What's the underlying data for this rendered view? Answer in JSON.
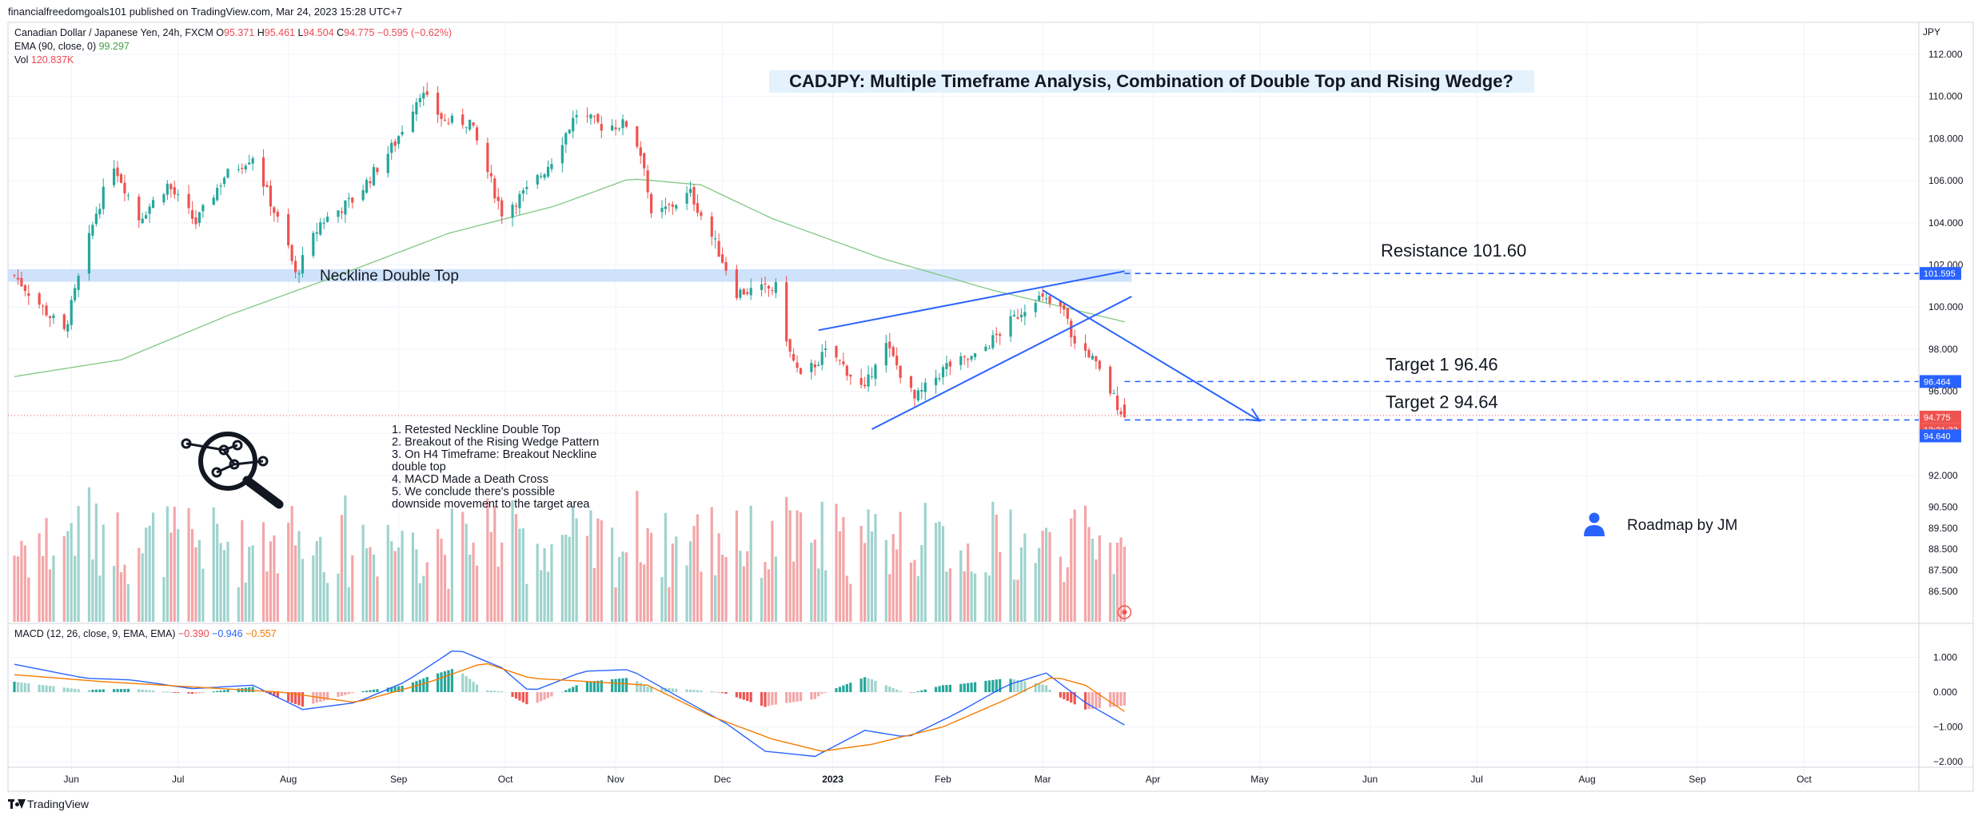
{
  "header": {
    "publisher": "financialfreedomgoals101 published on TradingView.com, Mar 24, 2023 15:28 UTC+7"
  },
  "legend": {
    "symbol": "Canadian Dollar / Japanese Yen, 24h, FXCM",
    "o_label": "O",
    "o": "95.371",
    "h_label": "H",
    "h": "95.461",
    "l_label": "L",
    "l": "94.504",
    "c_label": "C",
    "c": "94.775",
    "change": "−0.595 (−0.62%)",
    "ema_label": "EMA (90, close, 0)",
    "ema_value": "99.297",
    "vol_label": "Vol",
    "vol_value": "120.837K",
    "macd_label": "MACD (12, 26, close, 9, EMA, EMA)",
    "macd_hist": "−0.390",
    "macd_line": "−0.946",
    "macd_signal": "−0.557"
  },
  "colors": {
    "up": "#26a69a",
    "down": "#ef5350",
    "vol_up": "#9fd3cd",
    "vol_down": "#f4a6a8",
    "ema": "#81c784",
    "drawing": "#2962ff",
    "macd_line": "#2962ff",
    "signal_line": "#f57c00",
    "neckline_zone": "#cfe2fb"
  },
  "annotations": {
    "title": "CADJPY: Multiple Timeframe Analysis, Combination of Double Top and Rising Wedge?",
    "neckline_label": "Neckline Double Top",
    "resistance_label": "Resistance 101.60",
    "target1_label": "Target 1  96.46",
    "target2_label": "Target 2  94.64",
    "notes": [
      "1. Retested Neckline Double Top",
      "2. Breakout of the Rising Wedge Pattern",
      "3. On H4 Timeframe: Breakout Neckline",
      "    double top",
      "4. MACD Made a Death Cross",
      "5.  We conclude there's possible",
      "downside movement to the target area"
    ],
    "roadmap": "Roadmap by JM",
    "icon": "magnifier-network-icon",
    "user_icon": "user-icon"
  },
  "price_axis": {
    "currency": "JPY",
    "ticks": [
      "112.000",
      "110.000",
      "108.000",
      "106.000",
      "104.000",
      "102.000",
      "100.000",
      "98.000",
      "96.000",
      "94.000",
      "92.000",
      "90.500",
      "89.500",
      "88.500",
      "87.500",
      "86.500"
    ],
    "labels": [
      {
        "text": "101.595",
        "color": "#2962ff",
        "value": 101.595
      },
      {
        "text": "96.464",
        "color": "#2962ff",
        "value": 96.464
      },
      {
        "text": "94.775",
        "color": "#ef5350",
        "value": 94.775
      },
      {
        "text": "12:31:33",
        "color": "#ef5350",
        "value": 94.775
      },
      {
        "text": "94.640",
        "color": "#2962ff",
        "value": 94.64
      }
    ]
  },
  "macd_axis": {
    "ticks": [
      "1.000",
      "0.000",
      "−1.000",
      "−2.000"
    ]
  },
  "time_axis": {
    "ticks": [
      "Jun",
      "Jul",
      "Aug",
      "Sep",
      "Oct",
      "Nov",
      "Dec",
      "2023",
      "Feb",
      "Mar",
      "Apr",
      "May",
      "Jun",
      "Jul",
      "Aug",
      "Sep",
      "Oct"
    ]
  },
  "footer": {
    "brand": "TradingView"
  },
  "chart_data": {
    "type": "candlestick",
    "symbol": "CADJPY",
    "timeframe": "24h",
    "ylim": [
      86.0,
      113.0
    ],
    "x_range": [
      "2022-05-16",
      "2023-10-31"
    ],
    "levels": {
      "neckline_zone": [
        101.2,
        101.8
      ],
      "resistance": 101.595,
      "target1": 96.464,
      "target2": 94.64,
      "last_close": 94.775
    },
    "waypoints": [
      [
        "2022-05-16",
        101.5
      ],
      [
        "2022-05-30",
        98.8
      ],
      [
        "2022-06-08",
        104.5
      ],
      [
        "2022-06-13",
        106.8
      ],
      [
        "2022-06-20",
        104.2
      ],
      [
        "2022-06-28",
        105.8
      ],
      [
        "2022-07-06",
        104.0
      ],
      [
        "2022-07-14",
        106.2
      ],
      [
        "2022-07-22",
        107.2
      ],
      [
        "2022-08-01",
        102.8
      ],
      [
        "2022-08-03",
        101.5
      ],
      [
        "2022-08-10",
        104.0
      ],
      [
        "2022-08-20",
        105.2
      ],
      [
        "2022-08-31",
        107.8
      ],
      [
        "2022-09-07",
        110.2
      ],
      [
        "2022-09-14",
        108.8
      ],
      [
        "2022-09-21",
        108.8
      ],
      [
        "2022-09-30",
        104.5
      ],
      [
        "2022-10-07",
        105.5
      ],
      [
        "2022-10-12",
        106.5
      ],
      [
        "2022-10-14",
        107.0
      ],
      [
        "2022-10-21",
        109.2
      ],
      [
        "2022-10-28",
        108.6
      ],
      [
        "2022-11-05",
        108.7
      ],
      [
        "2022-11-09",
        106.8
      ],
      [
        "2022-11-11",
        104.2
      ],
      [
        "2022-11-22",
        105.4
      ],
      [
        "2022-11-29",
        103.0
      ],
      [
        "2022-12-05",
        100.7
      ],
      [
        "2022-12-16",
        100.9
      ],
      [
        "2022-12-20",
        97.8
      ],
      [
        "2022-12-23",
        96.6
      ],
      [
        "2022-12-31",
        98.0
      ],
      [
        "2023-01-10",
        96.0
      ],
      [
        "2023-01-15",
        98.5
      ],
      [
        "2023-01-24",
        95.6
      ],
      [
        "2023-02-02",
        97.2
      ],
      [
        "2023-02-10",
        97.6
      ],
      [
        "2023-02-20",
        99.3
      ],
      [
        "2023-02-27",
        100.5
      ],
      [
        "2023-03-07",
        99.8
      ],
      [
        "2023-03-10",
        98.2
      ],
      [
        "2023-03-14",
        97.8
      ],
      [
        "2023-03-20",
        96.0
      ],
      [
        "2023-03-24",
        94.775
      ]
    ],
    "ema_90": [
      [
        "2022-05-16",
        96.7
      ],
      [
        "2022-06-15",
        97.5
      ],
      [
        "2022-07-15",
        99.6
      ],
      [
        "2022-08-15",
        101.5
      ],
      [
        "2022-09-15",
        103.5
      ],
      [
        "2022-10-15",
        104.8
      ],
      [
        "2022-11-05",
        106.1
      ],
      [
        "2022-11-25",
        105.8
      ],
      [
        "2022-12-15",
        104.2
      ],
      [
        "2023-01-15",
        102.3
      ],
      [
        "2023-02-15",
        100.8
      ],
      [
        "2023-03-24",
        99.3
      ]
    ],
    "macd": {
      "zero": 0,
      "ylim": [
        -2.2,
        1.5
      ],
      "macd_line": [
        [
          "2022-05-16",
          0.8
        ],
        [
          "2022-06-05",
          0.4
        ],
        [
          "2022-06-18",
          0.35
        ],
        [
          "2022-07-05",
          0.1
        ],
        [
          "2022-07-22",
          0.2
        ],
        [
          "2022-08-05",
          -0.5
        ],
        [
          "2022-08-20",
          -0.3
        ],
        [
          "2022-09-03",
          0.3
        ],
        [
          "2022-09-17",
          1.25
        ],
        [
          "2022-09-30",
          0.7
        ],
        [
          "2022-10-08",
          0.0
        ],
        [
          "2022-10-23",
          0.6
        ],
        [
          "2022-11-05",
          0.65
        ],
        [
          "2022-11-18",
          -0.1
        ],
        [
          "2022-12-02",
          -0.9
        ],
        [
          "2022-12-13",
          -1.7
        ],
        [
          "2022-12-27",
          -1.85
        ],
        [
          "2023-01-10",
          -1.1
        ],
        [
          "2023-01-22",
          -1.3
        ],
        [
          "2023-02-05",
          -0.6
        ],
        [
          "2023-02-19",
          0.2
        ],
        [
          "2023-03-02",
          0.55
        ],
        [
          "2023-03-13",
          -0.3
        ],
        [
          "2023-03-24",
          -0.946
        ]
      ],
      "signal_line": [
        [
          "2022-05-16",
          0.5
        ],
        [
          "2022-06-10",
          0.3
        ],
        [
          "2022-07-05",
          0.15
        ],
        [
          "2022-07-30",
          0.0
        ],
        [
          "2022-08-20",
          -0.3
        ],
        [
          "2022-09-10",
          0.3
        ],
        [
          "2022-09-25",
          0.85
        ],
        [
          "2022-10-08",
          0.4
        ],
        [
          "2022-10-25",
          0.3
        ],
        [
          "2022-11-10",
          0.2
        ],
        [
          "2022-11-28",
          -0.7
        ],
        [
          "2022-12-15",
          -1.35
        ],
        [
          "2022-12-29",
          -1.7
        ],
        [
          "2023-01-12",
          -1.5
        ],
        [
          "2023-02-01",
          -1.0
        ],
        [
          "2023-02-19",
          -0.2
        ],
        [
          "2023-03-04",
          0.45
        ],
        [
          "2023-03-13",
          0.2
        ],
        [
          "2023-03-24",
          -0.557
        ]
      ]
    },
    "drawings": {
      "wedge_upper": [
        [
          "2022-12-28",
          98.9
        ],
        [
          "2023-03-24",
          101.7
        ]
      ],
      "wedge_lower": [
        [
          "2023-01-12",
          94.2
        ],
        [
          "2023-03-26",
          100.5
        ]
      ],
      "projection_arrow": [
        [
          "2023-03-01",
          100.8
        ],
        [
          "2023-05-01",
          94.6
        ]
      ]
    }
  }
}
